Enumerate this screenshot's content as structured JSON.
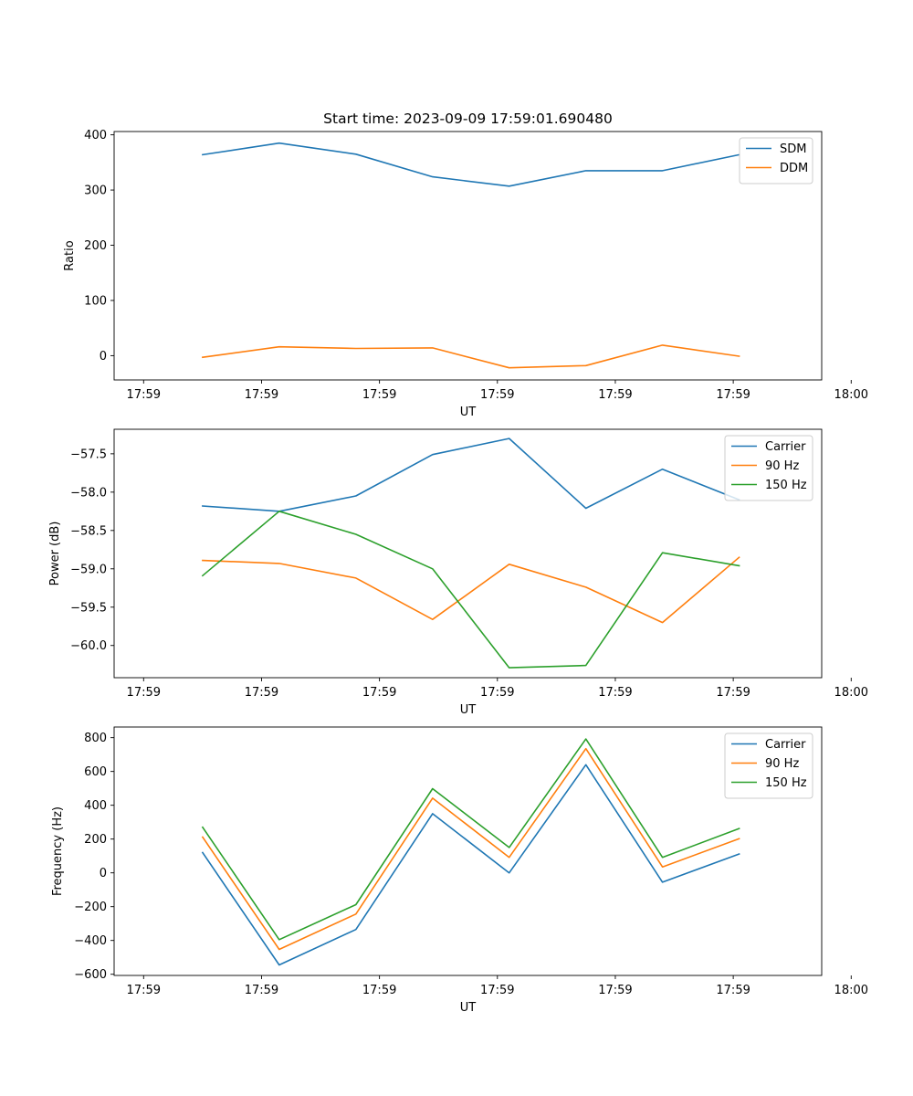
{
  "colors": {
    "blue": "#1f77b4",
    "orange": "#ff7f0e",
    "green": "#2ca02c"
  },
  "chart_data": [
    {
      "type": "line",
      "title": "Start time: 2023-09-09 17:59:01.690480",
      "xlabel": "UT",
      "ylabel": "Ratio",
      "xlim": [
        -0.5,
        11.5
      ],
      "xticks": [
        0,
        2,
        4,
        6,
        8,
        10,
        12
      ],
      "x_tick_labels": [
        "17:59",
        "17:59",
        "17:59",
        "17:59",
        "17:59",
        "17:59",
        "18:00"
      ],
      "ylim": [
        -44,
        406
      ],
      "yticks": [
        0,
        100,
        200,
        300,
        400
      ],
      "y_tick_labels": [
        "0",
        "100",
        "200",
        "300",
        "400"
      ],
      "legend_position": "top-right",
      "x": [
        1,
        2.3,
        3.6,
        4.9,
        6.2,
        7.5,
        8.8,
        10.1
      ],
      "series": [
        {
          "name": "SDM",
          "color": "#1f77b4",
          "values": [
            364,
            385,
            365,
            324,
            307,
            335,
            335,
            364
          ]
        },
        {
          "name": "DDM",
          "color": "#ff7f0e",
          "values": [
            -3,
            16,
            13,
            14,
            -22,
            -18,
            19,
            -1
          ]
        }
      ]
    },
    {
      "type": "line",
      "title": "",
      "xlabel": "UT",
      "ylabel": "Power (dB)",
      "xlim": [
        -0.5,
        11.5
      ],
      "xticks": [
        0,
        2,
        4,
        6,
        8,
        10,
        12
      ],
      "x_tick_labels": [
        "17:59",
        "17:59",
        "17:59",
        "17:59",
        "17:59",
        "17:59",
        "18:00"
      ],
      "ylim": [
        -60.42,
        -57.18
      ],
      "yticks": [
        -60.0,
        -59.5,
        -59.0,
        -58.5,
        -58.0,
        -57.5
      ],
      "y_tick_labels": [
        "−60.0",
        "−59.5",
        "−59.0",
        "−58.5",
        "−58.0",
        "−57.5"
      ],
      "legend_position": "top-right",
      "x": [
        1,
        2.3,
        3.6,
        4.9,
        6.2,
        7.5,
        8.8,
        10.1
      ],
      "series": [
        {
          "name": "Carrier",
          "color": "#1f77b4",
          "values": [
            -58.18,
            -58.25,
            -58.05,
            -57.51,
            -57.3,
            -58.21,
            -57.7,
            -58.1
          ]
        },
        {
          "name": "90 Hz",
          "color": "#ff7f0e",
          "values": [
            -58.89,
            -58.93,
            -59.12,
            -59.66,
            -58.94,
            -59.24,
            -59.7,
            -58.85
          ]
        },
        {
          "name": "150 Hz",
          "color": "#2ca02c",
          "values": [
            -59.09,
            -58.25,
            -58.55,
            -59.0,
            -60.29,
            -60.26,
            -58.79,
            -58.96
          ]
        }
      ]
    },
    {
      "type": "line",
      "title": "",
      "xlabel": "UT",
      "ylabel": "Frequency (Hz)",
      "xlim": [
        -0.5,
        11.5
      ],
      "xticks": [
        0,
        2,
        4,
        6,
        8,
        10,
        12
      ],
      "x_tick_labels": [
        "17:59",
        "17:59",
        "17:59",
        "17:59",
        "17:59",
        "17:59",
        "18:00"
      ],
      "ylim": [
        -607,
        863
      ],
      "yticks": [
        -600,
        -400,
        -200,
        0,
        200,
        400,
        600,
        800
      ],
      "y_tick_labels": [
        "−600",
        "−400",
        "−200",
        "0",
        "200",
        "400",
        "600",
        "800"
      ],
      "legend_position": "top-right",
      "x": [
        1,
        2.3,
        3.6,
        4.9,
        6.2,
        7.5,
        8.8,
        10.1
      ],
      "series": [
        {
          "name": "Carrier",
          "color": "#1f77b4",
          "values": [
            120,
            -545,
            -335,
            350,
            0,
            640,
            -55,
            112
          ]
        },
        {
          "name": "90 Hz",
          "color": "#ff7f0e",
          "values": [
            212,
            -453,
            -244,
            442,
            92,
            735,
            35,
            202
          ]
        },
        {
          "name": "150 Hz",
          "color": "#2ca02c",
          "values": [
            270,
            -395,
            -188,
            498,
            150,
            792,
            92,
            262
          ]
        }
      ]
    }
  ]
}
